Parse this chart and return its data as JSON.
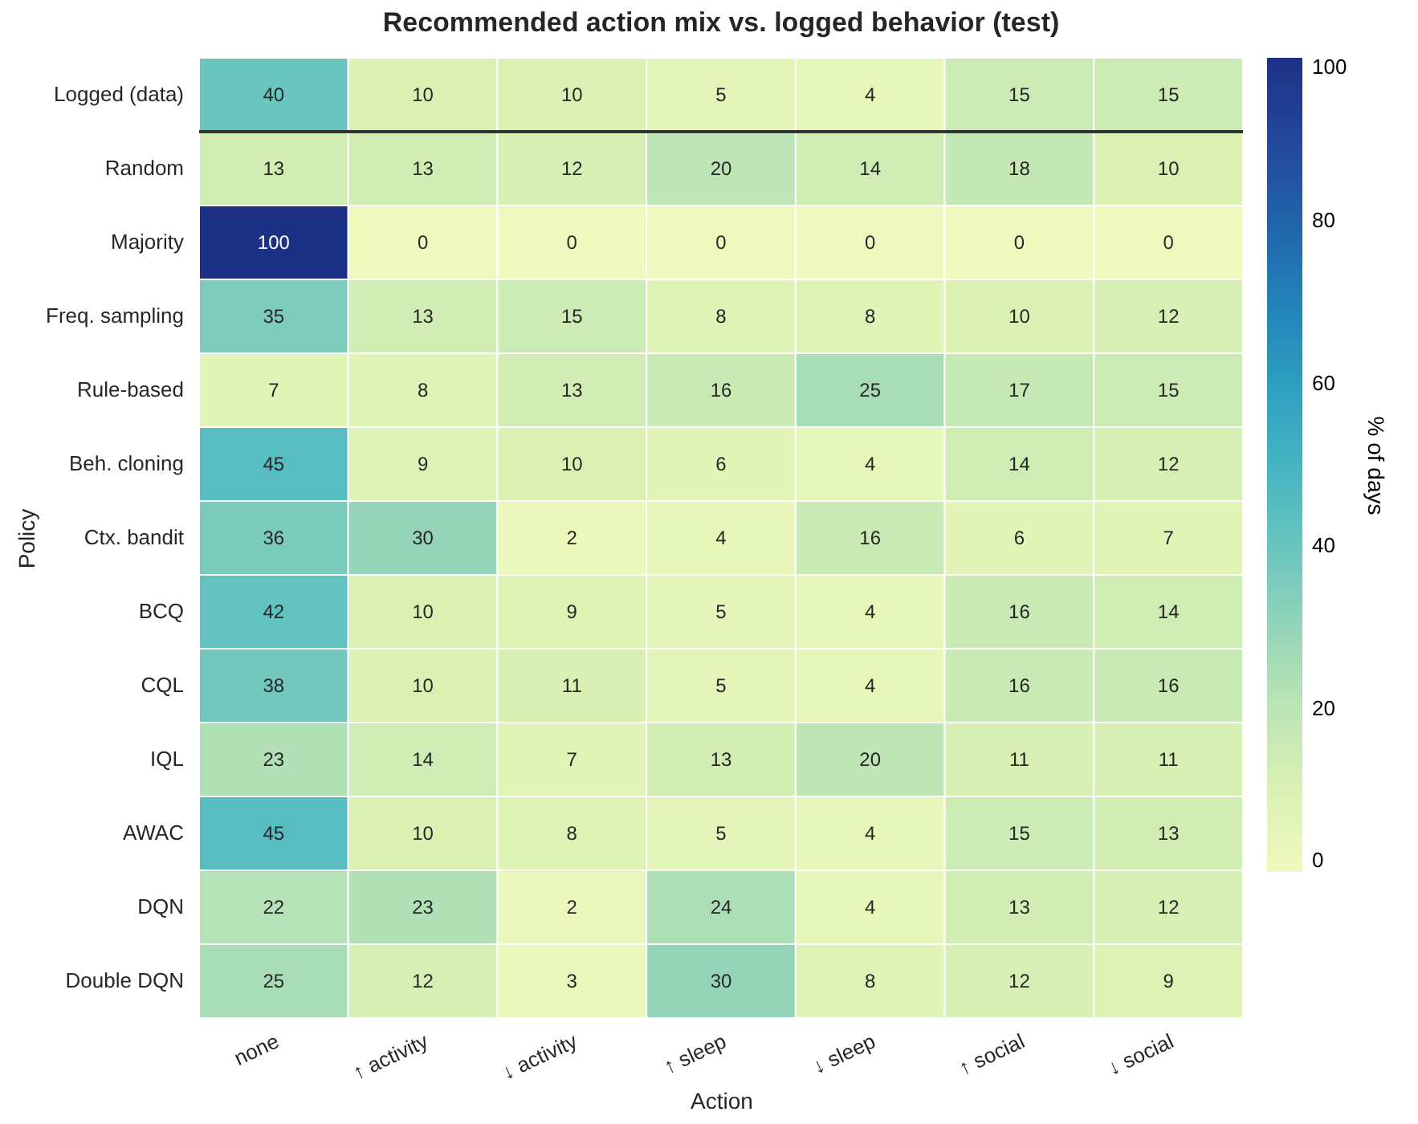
{
  "chart_data": {
    "type": "heatmap",
    "title": "Recommended action mix vs. logged behavior (test)",
    "xlabel": "Action",
    "ylabel": "Policy",
    "clabel": "% of days",
    "categories": [
      "none",
      "↑ activity",
      "↓ activity",
      "↑ sleep",
      "↓ sleep",
      "↑ social",
      "↓ social"
    ],
    "y_categories": [
      "Logged (data)",
      "Random",
      "Majority",
      "Freq. sampling",
      "Rule-based",
      "Beh. cloning",
      "Ctx. bandit",
      "BCQ",
      "CQL",
      "IQL",
      "AWAC",
      "DQN",
      "Double DQN"
    ],
    "cells": [
      [
        40,
        10,
        10,
        5,
        4,
        15,
        15
      ],
      [
        13,
        13,
        12,
        20,
        14,
        18,
        10
      ],
      [
        100,
        0,
        0,
        0,
        0,
        0,
        0
      ],
      [
        35,
        13,
        15,
        8,
        8,
        10,
        12
      ],
      [
        7,
        8,
        13,
        16,
        25,
        17,
        15
      ],
      [
        45,
        9,
        10,
        6,
        4,
        14,
        12
      ],
      [
        36,
        30,
        2,
        4,
        16,
        6,
        7
      ],
      [
        42,
        10,
        9,
        5,
        4,
        16,
        14
      ],
      [
        38,
        10,
        11,
        5,
        4,
        16,
        16
      ],
      [
        23,
        14,
        7,
        13,
        20,
        11,
        11
      ],
      [
        45,
        10,
        8,
        5,
        4,
        15,
        13
      ],
      [
        22,
        23,
        2,
        24,
        4,
        13,
        12
      ],
      [
        25,
        12,
        3,
        30,
        8,
        12,
        9
      ]
    ],
    "clim": [
      0,
      100
    ],
    "cticks": [
      0,
      20,
      40,
      60,
      80,
      100
    ],
    "data_labels": true,
    "ref_lines": [
      {
        "axis": "y",
        "value": "Logged (data)",
        "color": "#333333"
      }
    ]
  }
}
